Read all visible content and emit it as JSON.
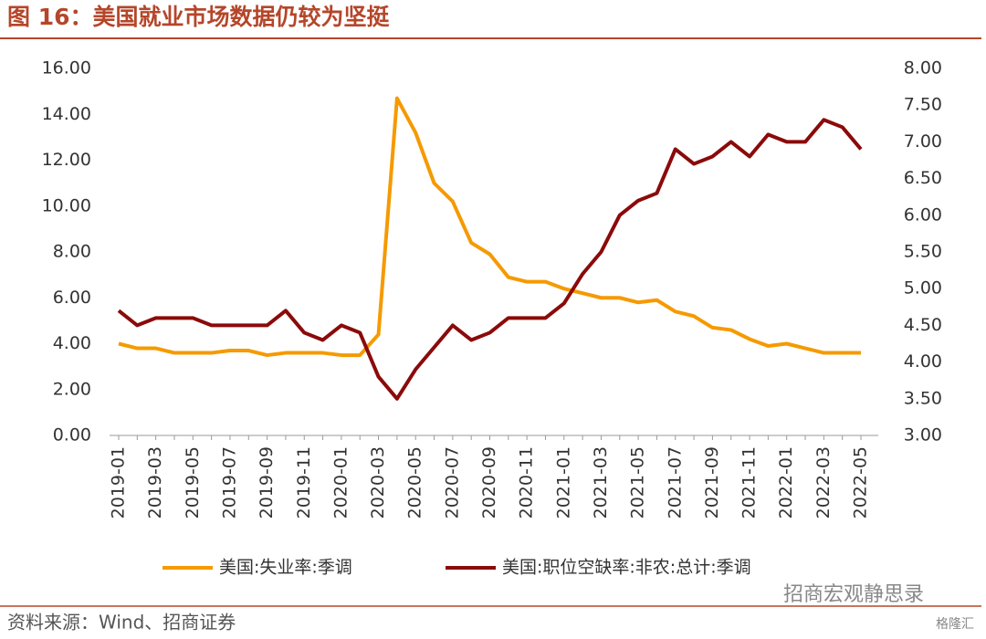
{
  "chart_data": {
    "type": "line",
    "title": "图 16：美国就业市场数据仍较为坚挺",
    "source": "资料来源：Wind、招商证券",
    "watermark": "招商宏观静思录",
    "watermark2": "格隆汇",
    "categories": [
      "2019-01",
      null,
      "2019-03",
      null,
      "2019-05",
      null,
      "2019-07",
      null,
      "2019-09",
      null,
      "2019-11",
      null,
      "2020-01",
      null,
      "2020-03",
      null,
      "2020-05",
      null,
      "2020-07",
      null,
      "2020-09",
      null,
      "2020-11",
      null,
      "2021-01",
      null,
      "2021-03",
      null,
      "2021-05",
      null,
      "2021-07",
      null,
      "2021-09",
      null,
      "2021-11",
      null,
      "2022-01",
      null,
      "2022-03",
      null,
      "2022-05"
    ],
    "series": [
      {
        "name": "美国:失业率:季调",
        "color": "#f59a00",
        "axis": "y",
        "values": [
          4.0,
          3.8,
          3.8,
          3.6,
          3.6,
          3.6,
          3.7,
          3.7,
          3.5,
          3.6,
          3.6,
          3.6,
          3.5,
          3.5,
          4.4,
          14.7,
          13.2,
          11.0,
          10.2,
          8.4,
          7.9,
          6.9,
          6.7,
          6.7,
          6.4,
          6.2,
          6.0,
          6.0,
          5.8,
          5.9,
          5.4,
          5.2,
          4.7,
          4.6,
          4.2,
          3.9,
          4.0,
          3.8,
          3.6,
          3.6,
          3.6
        ]
      },
      {
        "name": "美国:职位空缺率:非农:总计:季调",
        "color": "#8b0a0a",
        "axis": "y2",
        "values": [
          4.7,
          4.5,
          4.6,
          4.6,
          4.6,
          4.5,
          4.5,
          4.5,
          4.5,
          4.7,
          4.4,
          4.3,
          4.5,
          4.4,
          3.8,
          3.5,
          3.9,
          4.2,
          4.5,
          4.3,
          4.4,
          4.6,
          4.6,
          4.6,
          4.8,
          5.2,
          5.5,
          6.0,
          6.2,
          6.3,
          6.9,
          6.7,
          6.8,
          7.0,
          6.8,
          7.1,
          7.0,
          7.0,
          7.3,
          7.2,
          6.9
        ]
      }
    ],
    "ylim": [
      0,
      16
    ],
    "yticks": [
      {
        "value": 0,
        "label": "0.00"
      },
      {
        "value": 2,
        "label": "2.00"
      },
      {
        "value": 4,
        "label": "4.00"
      },
      {
        "value": 6,
        "label": "6.00"
      },
      {
        "value": 8,
        "label": "8.00"
      },
      {
        "value": 10,
        "label": "10.00"
      },
      {
        "value": 12,
        "label": "12.00"
      },
      {
        "value": 14,
        "label": "14.00"
      },
      {
        "value": 16,
        "label": "16.00"
      }
    ],
    "y2lim": [
      3,
      8
    ],
    "y2ticks": [
      {
        "value": 3,
        "label": "3.00"
      },
      {
        "value": 3.5,
        "label": "3.50"
      },
      {
        "value": 4,
        "label": "4.00"
      },
      {
        "value": 4.5,
        "label": "4.50"
      },
      {
        "value": 5,
        "label": "5.00"
      },
      {
        "value": 5.5,
        "label": "5.50"
      },
      {
        "value": 6,
        "label": "6.00"
      },
      {
        "value": 6.5,
        "label": "6.50"
      },
      {
        "value": 7,
        "label": "7.00"
      },
      {
        "value": 7.5,
        "label": "7.50"
      },
      {
        "value": 8,
        "label": "8.00"
      }
    ],
    "legend": "bottom"
  }
}
